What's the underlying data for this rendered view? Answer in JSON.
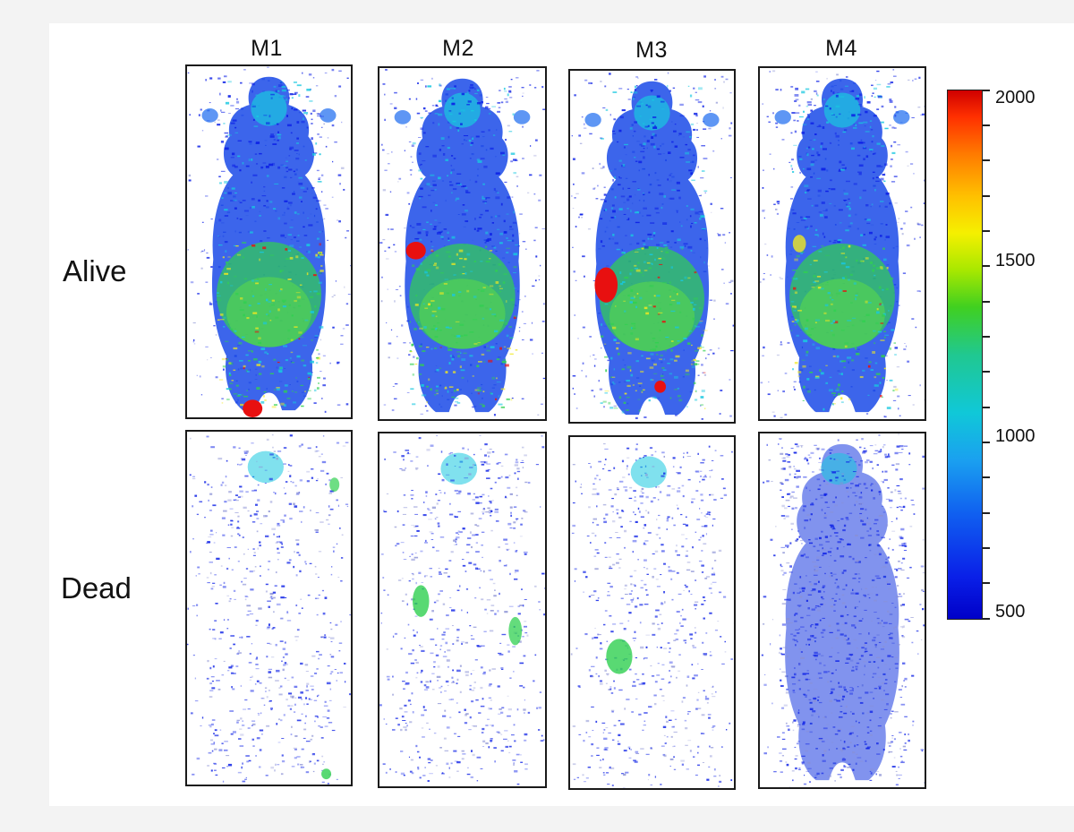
{
  "columns": [
    "M1",
    "M2",
    "M3",
    "M4"
  ],
  "rows": [
    "Alive",
    "Dead"
  ],
  "colorbar": {
    "labels": [
      "2000",
      "1500",
      "1000",
      "500"
    ],
    "range": [
      500,
      2000
    ]
  },
  "panels": [
    {
      "row": "Alive",
      "column": "M1",
      "hotspot": "tail base red"
    },
    {
      "row": "Alive",
      "column": "M2",
      "hotspot": "left flank red"
    },
    {
      "row": "Alive",
      "column": "M3",
      "hotspot": "left flank red, tail base red"
    },
    {
      "row": "Alive",
      "column": "M4",
      "hotspot": "none"
    },
    {
      "row": "Dead",
      "column": "M1",
      "hotspot": "none"
    },
    {
      "row": "Dead",
      "column": "M2",
      "hotspot": "both flanks green"
    },
    {
      "row": "Dead",
      "column": "M3",
      "hotspot": "left flank green"
    },
    {
      "row": "Dead",
      "column": "M4",
      "hotspot": "none"
    }
  ],
  "colors": {
    "low": "#0a1ee6",
    "mid": "#18c8e0",
    "green": "#30d050",
    "yellow": "#f0e820",
    "high": "#e81010"
  }
}
